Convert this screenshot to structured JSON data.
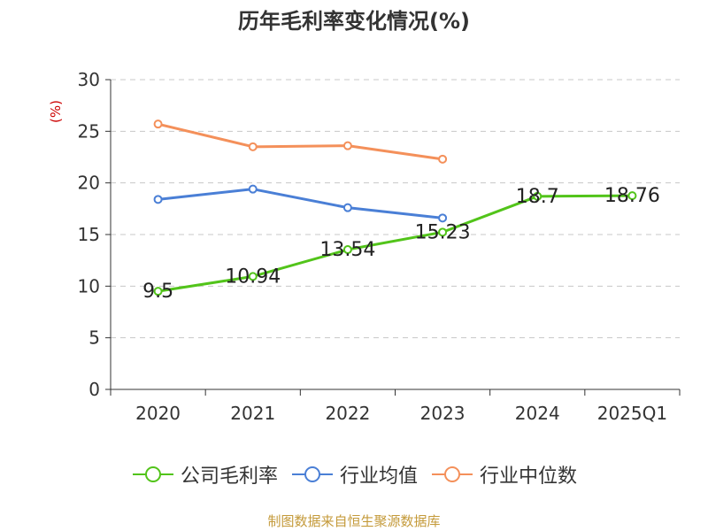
{
  "chart_data": {
    "type": "line",
    "title": "历年毛利率变化情况(%)",
    "ylabel": "(%)",
    "xlabel": "",
    "categories": [
      "2020",
      "2021",
      "2022",
      "2023",
      "2024",
      "2025Q1"
    ],
    "ylim": [
      0,
      30
    ],
    "yticks": [
      0,
      5,
      10,
      15,
      20,
      25,
      30
    ],
    "grid": true,
    "legend_position": "bottom",
    "series": [
      {
        "name": "公司毛利率",
        "color": "#52c41a",
        "show_labels": true,
        "values": [
          9.5,
          10.94,
          13.54,
          15.23,
          18.7,
          18.76
        ],
        "labels": [
          "9.5",
          "10.94",
          "13.54",
          "15.23",
          "18.7",
          "18.76"
        ]
      },
      {
        "name": "行业均值",
        "color": "#4a7fd6",
        "show_labels": false,
        "values": [
          18.4,
          19.4,
          17.6,
          16.6,
          null,
          null
        ]
      },
      {
        "name": "行业中位数",
        "color": "#f4905a",
        "show_labels": false,
        "values": [
          25.7,
          23.5,
          23.6,
          22.3,
          null,
          null
        ]
      }
    ]
  },
  "footer": {
    "source": "制图数据来自恒生聚源数据库"
  }
}
